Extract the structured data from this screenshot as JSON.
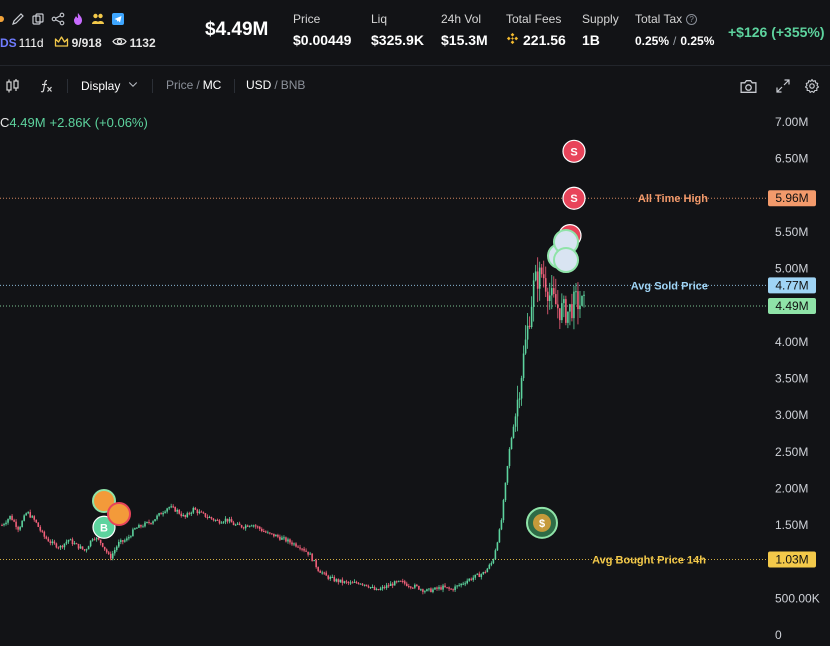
{
  "header": {
    "ticker_fragment": "DS",
    "age": "111d",
    "holders": "9/918",
    "views": "1132",
    "market_cap": "$4.49M",
    "gain": "+$126 (+355%)",
    "stats": [
      {
        "label": "Price",
        "value": "$0.00449"
      },
      {
        "label": "Liq",
        "value": "$325.9K"
      },
      {
        "label": "24h Vol",
        "value": "$15.3M"
      },
      {
        "label": "Total Fees",
        "value": "221.56"
      },
      {
        "label": "Supply",
        "value": "1B"
      }
    ],
    "tax": {
      "label": "Total Tax",
      "buy": "0.25%",
      "separator": "/",
      "sell": "0.25%"
    }
  },
  "toolbar": {
    "display_label": "Display",
    "price_label": "Price",
    "slash": "/",
    "mc_label": "MC",
    "usd_label": "USD",
    "bnb_label": "BNB"
  },
  "legend": {
    "prefix": "C",
    "value": "4.49M",
    "change": "+2.86K (+0.06%)"
  },
  "colors": {
    "up": "#5dd39e",
    "down": "#f2607a",
    "ath": "#f39a6b",
    "avg_sold": "#9fd4f5",
    "current": "#8fe3a8",
    "avg_bought": "#f3c94a",
    "sell_marker": "#e8445a",
    "buy_marker": "#5dd39e"
  },
  "chart_data": {
    "type": "candlestick",
    "y_unit": "market cap (USD)",
    "ylim": [
      0,
      7000000
    ],
    "y_ticks": [
      "7.00M",
      "6.50M",
      "6.00M",
      "5.50M",
      "5.00M",
      "4.50M",
      "4.00M",
      "3.50M",
      "3.00M",
      "2.50M",
      "2.00M",
      "1.50M",
      "1.00M",
      "500.00K",
      "0"
    ],
    "y_tick_values": [
      7000000,
      6500000,
      6000000,
      5500000,
      5000000,
      4500000,
      4000000,
      3500000,
      3000000,
      2500000,
      2000000,
      1500000,
      1000000,
      500000,
      0
    ],
    "series_path": [
      1.5,
      1.62,
      1.45,
      1.68,
      1.55,
      1.35,
      1.25,
      1.2,
      1.3,
      1.22,
      1.15,
      1.35,
      1.25,
      1.05,
      1.25,
      1.3,
      1.45,
      1.5,
      1.55,
      1.65,
      1.75,
      1.7,
      1.6,
      1.72,
      1.65,
      1.6,
      1.55,
      1.58,
      1.5,
      1.48,
      1.52,
      1.45,
      1.38,
      1.35,
      1.3,
      1.25,
      1.2,
      1.1,
      0.9,
      0.8,
      0.75,
      0.72,
      0.7,
      0.72,
      0.68,
      0.6,
      0.65,
      0.7,
      0.72,
      0.68,
      0.65,
      0.6,
      0.62,
      0.65,
      0.62,
      0.68,
      0.75,
      0.8,
      0.85,
      1.0,
      1.5,
      2.5,
      3.2,
      4.0,
      4.8,
      4.95,
      4.6,
      4.45,
      4.4,
      4.55,
      4.49
    ],
    "price_lines": [
      {
        "label": "All Time High",
        "value": 5960000,
        "tag": "5.96M"
      },
      {
        "label": "Avg Sold Price",
        "value": 4770000,
        "tag": "4.77M"
      },
      {
        "label": "",
        "value": 4490000,
        "tag": "4.49M"
      },
      {
        "label": "Avg Bought Price 14h",
        "value": 1030000,
        "tag": "1.03M"
      }
    ],
    "markers": [
      {
        "type": "sell",
        "label": "S",
        "value": 6600000
      },
      {
        "type": "sell",
        "label": "S",
        "value": 5960000
      },
      {
        "type": "sell",
        "label": "S",
        "value": 5450000
      },
      {
        "type": "buy",
        "label": "B",
        "value": 1470000
      },
      {
        "type": "dev",
        "label": "$",
        "value": 1530000
      }
    ]
  }
}
